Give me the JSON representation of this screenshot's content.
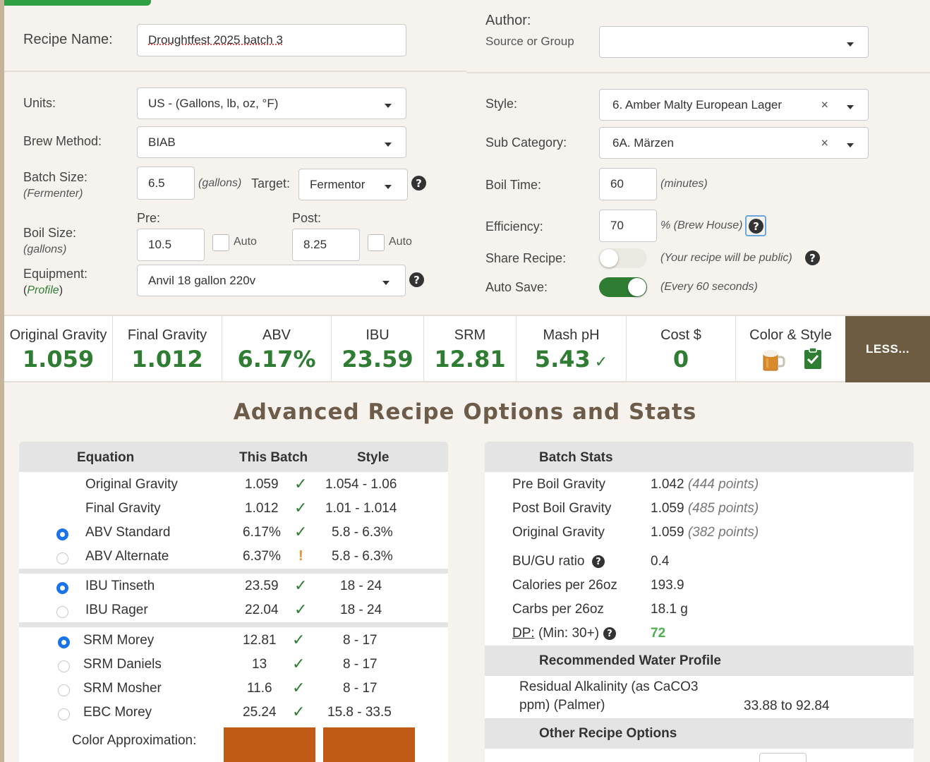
{
  "top": {
    "recipe_name_label": "Recipe Name:",
    "recipe_name_value": "Droughtfest 2025 batch 3",
    "author_label": "Author:",
    "source_label": "Source or Group",
    "author_value": ""
  },
  "left": {
    "units_label": "Units:",
    "units_value": "US - (Gallons, lb, oz, °F)",
    "brew_method_label": "Brew Method:",
    "brew_method_value": "BIAB",
    "batch_size_label": "Batch Size:",
    "batch_size_sub": "(Fermenter)",
    "batch_size_value": "6.5",
    "batch_unit": "(gallons)",
    "target_label": "Target:",
    "target_value": "Fermentor",
    "boil_size_label": "Boil Size:",
    "boil_size_sub": "(gallons)",
    "pre_label": "Pre:",
    "pre_value": "10.5",
    "post_label": "Post:",
    "post_value": "8.25",
    "auto_label": "Auto",
    "equipment_label": "Equipment:",
    "profile_open": "(",
    "profile_link": "Profile",
    "profile_close": ")",
    "equipment_value": "Anvil 18 gallon 220v"
  },
  "right": {
    "style_label": "Style:",
    "style_value": "6. Amber Malty European Lager",
    "subcat_label": "Sub Category:",
    "subcat_value": "6A. Märzen",
    "boil_time_label": "Boil Time:",
    "boil_time_value": "60",
    "boil_time_unit": "(minutes)",
    "efficiency_label": "Efficiency:",
    "efficiency_value": "70",
    "efficiency_unit": "% (Brew House)",
    "share_label": "Share Recipe:",
    "share_note": "(Your recipe will be public)",
    "autosave_label": "Auto Save:",
    "autosave_note": "(Every 60 seconds)"
  },
  "stats": {
    "og_label": "Original Gravity",
    "og": "1.059",
    "fg_label": "Final Gravity",
    "fg": "1.012",
    "abv_label": "ABV",
    "abv": "6.17%",
    "ibu_label": "IBU",
    "ibu": "23.59",
    "srm_label": "SRM",
    "srm": "12.81",
    "ph_label": "Mash pH",
    "ph": "5.43",
    "cost_label": "Cost $",
    "cost": "0",
    "color_label": "Color & Style",
    "less_label": "LESS..."
  },
  "advanced_title": "Advanced Recipe Options and Stats",
  "equation": {
    "h_equation": "Equation",
    "h_batch": "This Batch",
    "h_style": "Style",
    "rows": [
      {
        "name": "Original Gravity",
        "batch": "1.059",
        "style": "1.054 - 1.06"
      },
      {
        "name": "Final Gravity",
        "batch": "1.012",
        "style": "1.01 - 1.014"
      },
      {
        "name": "ABV Standard",
        "batch": "6.17%",
        "style": "5.8 - 6.3%"
      },
      {
        "name": "ABV Alternate",
        "batch": "6.37%",
        "style": "5.8 - 6.3%"
      },
      {
        "name": "IBU Tinseth",
        "batch": "23.59",
        "style": "18 - 24"
      },
      {
        "name": "IBU Rager",
        "batch": "22.04",
        "style": "18 - 24"
      },
      {
        "name": "SRM Morey",
        "batch": "12.81",
        "style": "8 - 17"
      },
      {
        "name": "SRM Daniels",
        "batch": "13",
        "style": "8 - 17"
      },
      {
        "name": "SRM Mosher",
        "batch": "11.6",
        "style": "8 - 17"
      },
      {
        "name": "EBC Morey",
        "batch": "25.24",
        "style": "15.8 - 33.5"
      }
    ],
    "color_approx_label": "Color Approximation:",
    "swatch_color": "#c05a14"
  },
  "batch_stats": {
    "title": "Batch Stats",
    "pre_boil_label": "Pre Boil Gravity",
    "pre_boil_value": "1.042",
    "pre_boil_points": "(444 points)",
    "post_boil_label": "Post Boil Gravity",
    "post_boil_value": "1.059",
    "post_boil_points": "(485 points)",
    "og_label": "Original Gravity",
    "og_value": "1.059",
    "og_points": "(382 points)",
    "bugu_label": "BU/GU ratio",
    "bugu_value": "0.4",
    "calories_label": "Calories per 26oz",
    "calories_value": "193.9",
    "carbs_label": "Carbs per 26oz",
    "carbs_value": "18.1 g",
    "dp_label": "DP:",
    "dp_min": "(Min: 30+)",
    "dp_value": "72",
    "water_title": "Recommended Water Profile",
    "ra_label_1": "Residual Alkalinity (as CaCO3",
    "ra_label_2": "ppm) (Palmer)",
    "ra_value": "33.88 to 92.84",
    "other_title": "Other Recipe Options"
  },
  "colors": {
    "accent_green": "#2e7d32",
    "toggle_on": "#2e7d32",
    "less_bg": "#6e5c42",
    "radio_on": "#1a73e8"
  }
}
